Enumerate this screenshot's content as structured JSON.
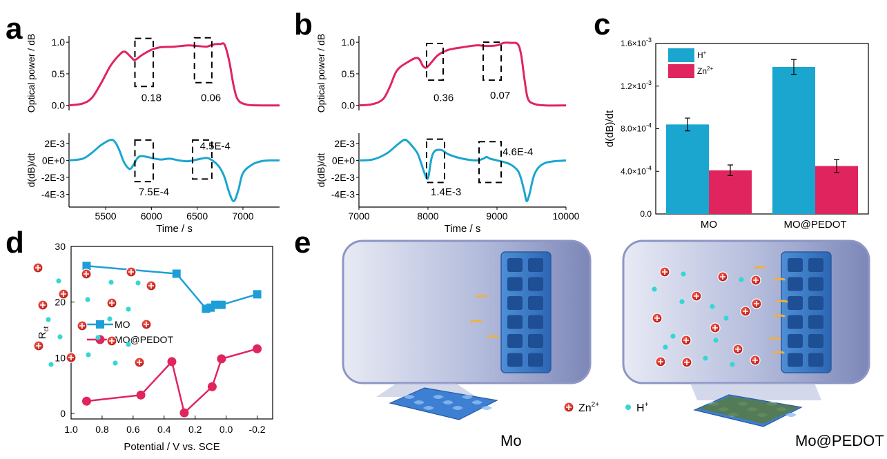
{
  "panels": {
    "a": "a",
    "b": "b",
    "c": "c",
    "d": "d",
    "e": "e"
  },
  "colors": {
    "pink": "#e0245e",
    "blue": "#1aa6cf",
    "sq_blue": "#1d9ed8",
    "dark_red": "#c8102e",
    "cyan": "#36d6d6"
  },
  "chart_data": [
    {
      "id": "a-top",
      "type": "line",
      "ylabel": "Optical power / dB",
      "xlim": [
        5100,
        7400
      ],
      "ylim": [
        -0.08,
        1.1
      ],
      "yticks": [
        "0.0",
        "0.5",
        "1.0"
      ],
      "ytick_values": [
        0,
        0.5,
        1.0
      ],
      "x": [
        5100,
        5250,
        5350,
        5450,
        5550,
        5650,
        5710,
        5780,
        5820,
        5900,
        6000,
        6100,
        6250,
        6400,
        6500,
        6600,
        6650,
        6700,
        6750,
        6800,
        6850,
        6900,
        6950,
        7050,
        7200,
        7400
      ],
      "y": [
        0,
        0.03,
        0.12,
        0.35,
        0.62,
        0.8,
        0.85,
        0.76,
        0.72,
        0.8,
        0.88,
        0.92,
        0.93,
        0.95,
        0.94,
        0.93,
        0.95,
        0.97,
        0.97,
        0.96,
        0.7,
        0.3,
        0.08,
        0.01,
        0,
        0
      ],
      "annotations": [
        "0.18",
        "0.06"
      ],
      "color": "#e0245e"
    },
    {
      "id": "a-bottom",
      "type": "line",
      "ylabel": "d(dB)/dt",
      "xlabel": "Time / s",
      "xlim": [
        5100,
        7400
      ],
      "ylim": [
        -0.0055,
        0.0032
      ],
      "yticks": [
        "2E-3",
        "0E+0",
        "-2E-3",
        "-4E-3"
      ],
      "ytick_values": [
        0.002,
        0,
        -0.002,
        -0.004
      ],
      "xticks": [
        "5500",
        "6000",
        "6500",
        "7000"
      ],
      "xtick_values": [
        5500,
        6000,
        6500,
        7000
      ],
      "x": [
        5100,
        5250,
        5350,
        5450,
        5550,
        5600,
        5650,
        5700,
        5760,
        5800,
        5850,
        5900,
        6000,
        6100,
        6200,
        6300,
        6400,
        6500,
        6600,
        6650,
        6700,
        6750,
        6800,
        6850,
        6900,
        6950,
        7000,
        7100,
        7200,
        7300,
        7400
      ],
      "y": [
        0,
        0.0002,
        0.0009,
        0.0018,
        0.0024,
        0.0022,
        0.0012,
        -0.0002,
        -0.001,
        -0.0006,
        0.0003,
        0.0005,
        0.0003,
        0.0001,
        0.0002,
        0,
        -0.0001,
        0.0001,
        0.0003,
        0.0001,
        -0.0003,
        -0.0009,
        -0.002,
        -0.0038,
        -0.0048,
        -0.0035,
        -0.0015,
        -0.0005,
        -0.0001,
        0,
        0
      ],
      "annotations": [
        "7.5E-4",
        "4.5E-4"
      ],
      "color": "#1aa6cf"
    },
    {
      "id": "b-top",
      "type": "line",
      "ylabel": "Optical power / dB",
      "xlim": [
        7000,
        10000
      ],
      "ylim": [
        -0.08,
        1.1
      ],
      "yticks": [
        "0.0",
        "0.5",
        "1.0"
      ],
      "ytick_values": [
        0,
        0.5,
        1.0
      ],
      "x": [
        7000,
        7200,
        7350,
        7450,
        7550,
        7700,
        7850,
        7930,
        7980,
        8050,
        8150,
        8300,
        8500,
        8700,
        8850,
        9000,
        9100,
        9200,
        9300,
        9350,
        9400,
        9450,
        9550,
        9700,
        10000
      ],
      "y": [
        0,
        0.02,
        0.1,
        0.3,
        0.55,
        0.68,
        0.75,
        0.62,
        0.6,
        0.68,
        0.8,
        0.88,
        0.92,
        0.95,
        0.94,
        0.95,
        0.99,
        0.99,
        0.97,
        0.8,
        0.4,
        0.1,
        0.02,
        0,
        0
      ],
      "annotations": [
        "0.36",
        "0.07"
      ],
      "color": "#e0245e"
    },
    {
      "id": "b-bottom",
      "type": "line",
      "ylabel": "d(dB)/dt",
      "xlabel": "Time / s",
      "xlim": [
        7000,
        10000
      ],
      "ylim": [
        -0.0055,
        0.0032
      ],
      "yticks": [
        "2E-3",
        "0E+0",
        "-2E-3",
        "-4E-3"
      ],
      "ytick_values": [
        0.002,
        0,
        -0.002,
        -0.004
      ],
      "xticks": [
        "7000",
        "8000",
        "9000",
        "10000"
      ],
      "xtick_values": [
        7000,
        8000,
        9000,
        10000
      ],
      "x": [
        7000,
        7200,
        7400,
        7550,
        7650,
        7700,
        7780,
        7850,
        7900,
        7950,
        8000,
        8050,
        8100,
        8200,
        8300,
        8500,
        8700,
        8800,
        8850,
        8900,
        9000,
        9100,
        9200,
        9300,
        9350,
        9400,
        9430,
        9470,
        9550,
        9700,
        10000
      ],
      "y": [
        0,
        0.0001,
        0.0008,
        0.0018,
        0.0024,
        0.0023,
        0.0016,
        0.0008,
        -0.0003,
        -0.0015,
        -0.0021,
        0.0002,
        0.0011,
        0.0012,
        0.0007,
        0.0002,
        0,
        0.0002,
        0.0004,
        0.0002,
        0,
        -0.0002,
        -0.0005,
        -0.0012,
        -0.0022,
        -0.0038,
        -0.0048,
        -0.004,
        -0.0015,
        -0.0003,
        0
      ],
      "annotations": [
        "1.4E-3",
        "4.6E-4"
      ],
      "color": "#1aa6cf"
    },
    {
      "id": "c",
      "type": "bar",
      "ylabel": "d(dB)/dt",
      "categories": [
        "MO",
        "MO@PEDOT"
      ],
      "ylim": [
        0,
        0.0016
      ],
      "ytick_values": [
        0,
        0.0004,
        0.0008,
        0.0012,
        0.0016
      ],
      "ytick_mantissa": [
        "0.0",
        "4.0×10",
        "8.0×10",
        "1.2×10",
        "1.6×10"
      ],
      "ytick_exp": [
        "",
        "-4",
        "-4",
        "-3",
        "-3"
      ],
      "series": [
        {
          "name": "H",
          "sup": "+",
          "values": [
            0.00084,
            0.00138
          ],
          "errors": [
            6e-05,
            7e-05
          ],
          "color": "#1aa6cf"
        },
        {
          "name": "Zn",
          "sup": "2+",
          "values": [
            0.00041,
            0.00045
          ],
          "errors": [
            5e-05,
            6e-05
          ],
          "color": "#e0245e"
        }
      ]
    },
    {
      "id": "d",
      "type": "line",
      "ylabel": "R",
      "ylabel_sub": "ct",
      "xlabel": "Potential / V vs. SCE",
      "xlim": [
        1.0,
        -0.3
      ],
      "ylim": [
        -1,
        30
      ],
      "xticks": [
        "1.0",
        "0.8",
        "0.6",
        "0.4",
        "0.2",
        "0.0",
        "-0.2"
      ],
      "xtick_values": [
        1.0,
        0.8,
        0.6,
        0.4,
        0.2,
        0.0,
        -0.2
      ],
      "yticks": [
        "0",
        "10",
        "20",
        "30"
      ],
      "ytick_values": [
        0,
        10,
        20,
        30
      ],
      "series": [
        {
          "name": "MO",
          "marker": "square",
          "color": "#1d9ed8",
          "x": [
            0.9,
            0.32,
            0.13,
            0.1,
            0.07,
            0.03,
            -0.2
          ],
          "y": [
            26.5,
            25.1,
            18.8,
            19.0,
            19.5,
            19.5,
            21.4
          ]
        },
        {
          "name": "MO@PEDOT",
          "marker": "circle",
          "color": "#e0245e",
          "x": [
            0.9,
            0.55,
            0.35,
            0.27,
            0.09,
            0.03,
            -0.2
          ],
          "y": [
            2.2,
            3.3,
            9.3,
            0.1,
            4.8,
            9.8,
            11.6
          ]
        }
      ]
    }
  ],
  "schematic": {
    "zn_label": "Zn",
    "zn_sup": "2+",
    "h_label": "H",
    "h_sup": "+",
    "left_label": "Mo",
    "right_label": "Mo@PEDOT"
  }
}
